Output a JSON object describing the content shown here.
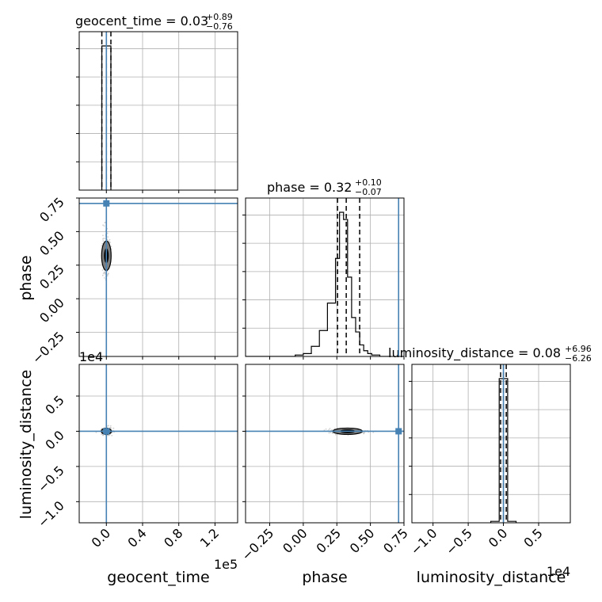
{
  "chart_data": {
    "type": "corner",
    "parameters": [
      {
        "name": "geocent_time",
        "title_prefix": "geocent_time = ",
        "median": "0.03",
        "plus": "+0.89",
        "minus": "−0.76",
        "axis_label": "geocent_time",
        "range": [
          -30000,
          145000
        ],
        "ticks": [
          0.0,
          0.4,
          0.8,
          1.2
        ],
        "tick_labels": [
          "0.0",
          "0.4",
          "0.8",
          "1.2"
        ],
        "tick_scale": 100000,
        "offset_label": "1e5",
        "truth": 0,
        "quantile_lines": [
          -5000,
          0,
          5000
        ],
        "histogram": {
          "edges": [
            -5000,
            5000
          ],
          "counts": [
            1.0
          ]
        }
      },
      {
        "name": "phase",
        "title_prefix": "phase = ",
        "median": "0.32",
        "plus": "+0.10",
        "minus": "−0.07",
        "axis_label": "phase",
        "range": [
          -0.43,
          0.75
        ],
        "ticks": [
          -0.25,
          0.0,
          0.25,
          0.5,
          0.75
        ],
        "tick_labels": [
          "−0.25",
          "0.00",
          "0.25",
          "0.50",
          "0.75"
        ],
        "truth": 0.71,
        "quantile_lines": [
          0.255,
          0.32,
          0.42
        ],
        "histogram": {
          "edges": [
            -0.43,
            -0.06,
            0.0,
            0.06,
            0.12,
            0.18,
            0.24,
            0.27,
            0.3,
            0.33,
            0.36,
            0.39,
            0.42,
            0.45,
            0.48,
            0.51,
            0.54,
            0.57,
            0.6,
            0.66
          ],
          "counts": [
            0.0,
            0.01,
            0.02,
            0.07,
            0.18,
            0.37,
            0.68,
            1.0,
            0.95,
            0.55,
            0.27,
            0.17,
            0.08,
            0.04,
            0.02,
            0.01,
            0.01,
            0.0,
            0.0
          ]
        }
      },
      {
        "name": "luminosity_distance",
        "title_prefix": "luminosity_distance = ",
        "median": "0.08",
        "plus": "+6.96",
        "minus": "−6.26",
        "axis_label": "luminosity_distance",
        "range": [
          -13000,
          9500
        ],
        "ticks": [
          -1.0,
          -0.5,
          0.0,
          0.5
        ],
        "tick_labels": [
          "−1.0",
          "−0.5",
          "0.0",
          "0.5"
        ],
        "tick_scale": 10000,
        "offset_label": "1e4",
        "truth": 0,
        "quantile_lines": [
          -400,
          0,
          400
        ],
        "histogram": {
          "edges": [
            -1800,
            -600,
            600,
            1800
          ],
          "counts": [
            0.01,
            1.0,
            0.01
          ]
        }
      }
    ],
    "truth_color": "#4682b4",
    "hist_color": "#000000",
    "contour_fill": "#7f7f7f",
    "scatter_color": "#bfbfbf",
    "grid": true,
    "pairs": [
      {
        "x": "geocent_time",
        "y": "phase",
        "center": [
          0,
          0.32
        ],
        "spread": [
          1500,
          0.05
        ]
      },
      {
        "x": "geocent_time",
        "y": "luminosity_distance",
        "center": [
          0,
          0
        ],
        "spread": [
          2500,
          150
        ]
      },
      {
        "x": "phase",
        "y": "luminosity_distance",
        "center": [
          0.33,
          0
        ],
        "spread": [
          0.05,
          120
        ]
      }
    ]
  }
}
